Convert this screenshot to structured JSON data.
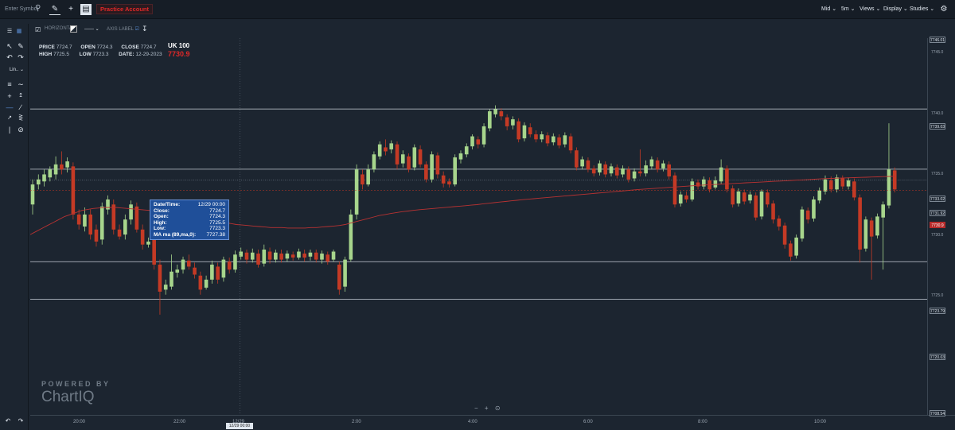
{
  "topbar": {
    "symbol_placeholder": "Enter Symbol",
    "account": "Practice Account",
    "menus": [
      "Mid",
      "5m",
      "Views",
      "Display",
      "Studies"
    ]
  },
  "drawing_toolbar": {
    "horizontal": "HORIZONTAL",
    "axis_label": "AXIS LABEL"
  },
  "hud": {
    "price_label": "PRICE",
    "price": "7724.7",
    "open_label": "OPEN",
    "open": "7724.3",
    "close_label": "CLOSE",
    "close": "7724.7",
    "high_label": "HIGH",
    "high": "7725.5",
    "low_label": "LOW",
    "low": "7723.3",
    "date_label": "DATE:",
    "date": "12-29-2023",
    "symbol": "UK 100",
    "last": "7730.9"
  },
  "tooltip": {
    "rows": [
      {
        "k": "Date/Time:",
        "v": "12/29 00:00"
      },
      {
        "k": "Close:",
        "v": "7724.7"
      },
      {
        "k": "Open:",
        "v": "7724.3"
      },
      {
        "k": "High:",
        "v": "7725.5"
      },
      {
        "k": "Low:",
        "v": "7723.3"
      },
      {
        "k": "MA ma (89,ma,0):",
        "v": "7727.38"
      }
    ]
  },
  "branding": {
    "powered": "POWERED BY",
    "logo": "ChartIQ"
  },
  "zoom": {
    "minus": "−",
    "plus": "+",
    "reset": "⊙"
  },
  "colors": {
    "up": "#a7d58c",
    "down": "#c43a25",
    "ma": "#b83232",
    "bg": "#1c2530",
    "level": "#c9d1d9"
  },
  "chart_data": {
    "type": "candlestick",
    "y_axis_ticks": [
      "7745.0",
      "7740.0",
      "7735.0",
      "7730.0",
      "7725.0"
    ],
    "x_axis_ticks": [
      "20:00",
      "22:00",
      "12/29",
      "2:00",
      "4:00",
      "6:00",
      "8:00",
      "10:00"
    ],
    "crosshair_x": "12/29 00:00",
    "levels": [
      "7746.01",
      "7739.03",
      "7733.02",
      "7731.92",
      "7723.79",
      "7720.03",
      "7708.54"
    ],
    "current_price": "7730.9",
    "ylim": [
      7708.5,
      7746.1
    ],
    "moving_average": "MA ma (89,ma,0)",
    "candles": [
      [
        7729.5,
        7731.5,
        7728.5,
        7732.0
      ],
      [
        7731.5,
        7732.0,
        7731.0,
        7732.5
      ],
      [
        7731.8,
        7732.5,
        7731.3,
        7733.0
      ],
      [
        7732.2,
        7733.0,
        7731.8,
        7733.3
      ],
      [
        7732.5,
        7733.5,
        7732.0,
        7734.3
      ],
      [
        7733.5,
        7733.0,
        7732.5,
        7734.8
      ],
      [
        7733.2,
        7733.8,
        7732.7,
        7734.2
      ],
      [
        7733.3,
        7728.5,
        7728.0,
        7733.7
      ],
      [
        7728.5,
        7727.5,
        7727.0,
        7729.0
      ],
      [
        7727.3,
        7728.5,
        7726.8,
        7729.2
      ],
      [
        7728.5,
        7726.5,
        7726.0,
        7729.0
      ],
      [
        7727.0,
        7725.8,
        7725.3,
        7727.5
      ],
      [
        7726.0,
        7729.3,
        7725.5,
        7729.7
      ],
      [
        7729.0,
        7730.0,
        7728.5,
        7730.4
      ],
      [
        7729.5,
        7727.0,
        7726.5,
        7730.0
      ],
      [
        7727.0,
        7726.3,
        7726.0,
        7727.5
      ],
      [
        7726.5,
        7728.0,
        7726.0,
        7728.5
      ],
      [
        7728.0,
        7729.5,
        7727.5,
        7729.9
      ],
      [
        7729.3,
        7727.0,
        7726.7,
        7729.7
      ],
      [
        7727.0,
        7725.5,
        7725.0,
        7727.5
      ],
      [
        7725.5,
        7725.8,
        7725.2,
        7726.2
      ],
      [
        7726.0,
        7723.5,
        7723.0,
        7726.4
      ],
      [
        7723.5,
        7720.8,
        7718.5,
        7724.0
      ],
      [
        7721.0,
        7721.5,
        7720.5,
        7722.0
      ],
      [
        7721.3,
        7722.8,
        7721.0,
        7724.5
      ],
      [
        7722.7,
        7723.0,
        7722.2,
        7723.5
      ],
      [
        7723.0,
        7724.0,
        7722.6,
        7724.3
      ],
      [
        7723.9,
        7723.3,
        7723.0,
        7724.5
      ],
      [
        7723.2,
        7722.5,
        7722.1,
        7723.7
      ],
      [
        7722.4,
        7721.0,
        7720.5,
        7722.8
      ],
      [
        7721.2,
        7722.0,
        7721.0,
        7722.4
      ],
      [
        7722.0,
        7723.5,
        7721.6,
        7723.9
      ],
      [
        7723.3,
        7722.0,
        7721.6,
        7723.7
      ],
      [
        7722.2,
        7724.0,
        7721.8,
        7724.3
      ],
      [
        7723.8,
        7723.0,
        7722.6,
        7724.2
      ],
      [
        7723.0,
        7724.5,
        7722.7,
        7724.9
      ],
      [
        7724.3,
        7724.8,
        7724.0,
        7725.2
      ],
      [
        7724.7,
        7724.0,
        7723.6,
        7725.0
      ],
      [
        7724.0,
        7724.7,
        7723.7,
        7725.1
      ],
      [
        7724.6,
        7723.5,
        7723.2,
        7725.0
      ],
      [
        7723.6,
        7725.0,
        7723.3,
        7725.5
      ],
      [
        7724.8,
        7724.0,
        7723.6,
        7725.2
      ],
      [
        7724.0,
        7724.7,
        7723.7,
        7725.0
      ],
      [
        7724.6,
        7724.0,
        7723.7,
        7725.0
      ],
      [
        7724.1,
        7724.6,
        7723.8,
        7724.9
      ],
      [
        7724.5,
        7724.2,
        7723.9,
        7724.8
      ],
      [
        7724.2,
        7724.8,
        7724.0,
        7725.1
      ],
      [
        7724.6,
        7724.2,
        7723.8,
        7725.0
      ],
      [
        7724.3,
        7724.7,
        7723.9,
        7725.0
      ],
      [
        7724.7,
        7724.0,
        7723.7,
        7725.0
      ],
      [
        7724.0,
        7724.6,
        7723.6,
        7724.9
      ],
      [
        7724.5,
        7723.8,
        7723.5,
        7724.8
      ],
      [
        7724.0,
        7724.8,
        7723.8,
        7725.0
      ],
      [
        7723.5,
        7721.0,
        7720.5,
        7723.8
      ],
      [
        7721.3,
        7724.0,
        7720.8,
        7724.3
      ],
      [
        7724.0,
        7728.5,
        7723.8,
        7729.0
      ],
      [
        7728.5,
        7733.0,
        7728.0,
        7733.5
      ],
      [
        7732.5,
        7731.5,
        7731.0,
        7733.0
      ],
      [
        7731.5,
        7733.0,
        7731.3,
        7733.5
      ],
      [
        7733.0,
        7734.5,
        7732.7,
        7734.8
      ],
      [
        7734.3,
        7735.5,
        7734.0,
        7735.8
      ],
      [
        7735.2,
        7734.8,
        7734.4,
        7736.0
      ],
      [
        7735.0,
        7735.6,
        7734.6,
        7735.9
      ],
      [
        7735.5,
        7733.5,
        7733.0,
        7735.8
      ],
      [
        7733.6,
        7734.5,
        7733.2,
        7734.9
      ],
      [
        7734.3,
        7733.0,
        7732.7,
        7734.6
      ],
      [
        7733.2,
        7735.2,
        7732.9,
        7735.5
      ],
      [
        7735.0,
        7733.5,
        7733.2,
        7735.4
      ],
      [
        7733.5,
        7732.0,
        7731.7,
        7733.8
      ],
      [
        7732.0,
        7734.5,
        7731.7,
        7734.8
      ],
      [
        7734.4,
        7732.5,
        7732.1,
        7734.7
      ],
      [
        7732.4,
        7731.6,
        7731.2,
        7732.8
      ],
      [
        7731.8,
        7731.5,
        7731.2,
        7732.1
      ],
      [
        7731.5,
        7734.2,
        7731.3,
        7734.5
      ],
      [
        7734.0,
        7734.6,
        7733.6,
        7734.9
      ],
      [
        7734.5,
        7735.3,
        7734.2,
        7735.6
      ],
      [
        7735.3,
        7736.3,
        7735.0,
        7736.5
      ],
      [
        7736.0,
        7735.5,
        7735.1,
        7736.3
      ],
      [
        7735.5,
        7737.3,
        7735.2,
        7737.6
      ],
      [
        7737.1,
        7738.8,
        7736.8,
        7739.0
      ],
      [
        7738.5,
        7739.0,
        7738.2,
        7739.4
      ],
      [
        7738.8,
        7738.3,
        7737.9,
        7739.1
      ],
      [
        7738.2,
        7737.3,
        7736.9,
        7738.5
      ],
      [
        7737.4,
        7738.0,
        7737.0,
        7738.3
      ],
      [
        7737.8,
        7736.0,
        7735.7,
        7738.1
      ],
      [
        7736.1,
        7737.4,
        7735.8,
        7737.7
      ],
      [
        7737.2,
        7736.5,
        7736.2,
        7737.6
      ],
      [
        7736.5,
        7736.0,
        7735.7,
        7736.9
      ],
      [
        7736.0,
        7736.5,
        7735.7,
        7736.8
      ],
      [
        7736.4,
        7735.6,
        7735.3,
        7736.7
      ],
      [
        7735.7,
        7736.3,
        7735.4,
        7736.6
      ],
      [
        7736.2,
        7735.4,
        7735.1,
        7736.5
      ],
      [
        7735.5,
        7736.4,
        7735.2,
        7736.7
      ],
      [
        7736.3,
        7734.9,
        7734.6,
        7736.6
      ],
      [
        7734.9,
        7733.2,
        7732.9,
        7735.2
      ],
      [
        7733.3,
        7734.0,
        7733.0,
        7734.3
      ],
      [
        7733.9,
        7733.0,
        7732.7,
        7734.2
      ],
      [
        7733.1,
        7732.6,
        7732.3,
        7733.4
      ],
      [
        7732.7,
        7733.6,
        7732.4,
        7733.9
      ],
      [
        7733.5,
        7732.5,
        7732.2,
        7733.8
      ],
      [
        7732.6,
        7733.3,
        7732.3,
        7733.6
      ],
      [
        7733.2,
        7732.4,
        7732.1,
        7733.5
      ],
      [
        7732.5,
        7733.1,
        7732.2,
        7733.4
      ],
      [
        7733.0,
        7732.0,
        7731.7,
        7733.3
      ],
      [
        7732.1,
        7732.8,
        7731.8,
        7733.1
      ],
      [
        7732.8,
        7732.6,
        7732.3,
        7735.0
      ],
      [
        7732.6,
        7733.4,
        7732.3,
        7733.9
      ],
      [
        7733.3,
        7734.0,
        7733.0,
        7734.3
      ],
      [
        7733.9,
        7733.0,
        7732.7,
        7734.2
      ],
      [
        7733.1,
        7733.6,
        7732.8,
        7733.9
      ],
      [
        7733.5,
        7732.3,
        7732.0,
        7733.8
      ],
      [
        7732.4,
        7729.5,
        7729.2,
        7732.7
      ],
      [
        7729.6,
        7730.5,
        7729.3,
        7730.8
      ],
      [
        7730.4,
        7730.0,
        7729.7,
        7730.8
      ],
      [
        7730.0,
        7731.8,
        7729.8,
        7732.1
      ],
      [
        7731.7,
        7731.3,
        7731.0,
        7732.0
      ],
      [
        7731.3,
        7732.0,
        7731.0,
        7732.3
      ],
      [
        7731.9,
        7731.0,
        7730.7,
        7732.2
      ],
      [
        7731.2,
        7731.9,
        7731.0,
        7732.3
      ],
      [
        7731.8,
        7733.2,
        7731.5,
        7734.0
      ],
      [
        7733.1,
        7731.0,
        7730.7,
        7733.4
      ],
      [
        7731.1,
        7729.5,
        7729.2,
        7731.4
      ],
      [
        7729.6,
        7730.8,
        7729.3,
        7731.1
      ],
      [
        7730.7,
        7729.8,
        7729.5,
        7731.0
      ],
      [
        7729.9,
        7730.5,
        7729.6,
        7730.8
      ],
      [
        7730.4,
        7728.2,
        7727.9,
        7730.7
      ],
      [
        7728.3,
        7730.8,
        7728.0,
        7731.0
      ],
      [
        7730.7,
        7729.5,
        7729.2,
        7731.0
      ],
      [
        7729.6,
        7728.0,
        7727.6,
        7729.9
      ],
      [
        7728.1,
        7727.3,
        7726.9,
        7728.4
      ],
      [
        7727.4,
        7725.5,
        7725.1,
        7727.7
      ],
      [
        7725.6,
        7724.3,
        7723.9,
        7725.9
      ],
      [
        7724.4,
        7726.2,
        7724.1,
        7726.5
      ],
      [
        7726.1,
        7729.0,
        7725.8,
        7729.3
      ],
      [
        7728.9,
        7728.0,
        7727.6,
        7729.2
      ],
      [
        7728.1,
        7730.0,
        7727.8,
        7730.3
      ],
      [
        7729.9,
        7730.9,
        7729.6,
        7731.2
      ],
      [
        7730.8,
        7732.0,
        7730.5,
        7732.4
      ],
      [
        7731.9,
        7731.0,
        7730.7,
        7732.3
      ],
      [
        7731.0,
        7732.2,
        7730.7,
        7732.5
      ],
      [
        7732.1,
        7731.3,
        7731.0,
        7732.4
      ],
      [
        7731.3,
        7731.9,
        7731.0,
        7732.2
      ],
      [
        7731.8,
        7730.2,
        7729.9,
        7732.1
      ],
      [
        7730.2,
        7725.0,
        7723.7,
        7730.5
      ],
      [
        7725.1,
        7728.0,
        7724.8,
        7728.3
      ],
      [
        7727.9,
        7726.3,
        7722.0,
        7728.2
      ],
      [
        7726.4,
        7728.3,
        7726.1,
        7728.6
      ],
      [
        7728.2,
        7729.5,
        7723.0,
        7729.8
      ],
      [
        7729.4,
        7733.0,
        7729.1,
        7737.6
      ],
      [
        7732.9,
        7731.0,
        7730.7,
        7733.2
      ]
    ],
    "ma_values": [
      7726.5,
      7726.8,
      7727.1,
      7727.4,
      7727.7,
      7728.0,
      7728.3,
      7728.5,
      7728.7,
      7728.9,
      7729.0,
      7729.1,
      7729.15,
      7729.2,
      7729.2,
      7729.2,
      7729.15,
      7729.1,
      7729.05,
      7729.0,
      7728.95,
      7728.9,
      7728.85,
      7728.8,
      7728.7,
      7728.6,
      7728.5,
      7728.4,
      7728.3,
      7728.2,
      7728.1,
      7728.0,
      7727.9,
      7727.8,
      7727.7,
      7727.6,
      7727.5,
      7727.45,
      7727.4,
      7727.35,
      7727.3,
      7727.25,
      7727.2,
      7727.2,
      7727.2,
      7727.15,
      7727.15,
      7727.15,
      7727.15,
      7727.2,
      7727.2,
      7727.25,
      7727.3,
      7727.35,
      7727.4,
      7727.5,
      7727.65,
      7727.8,
      7727.95,
      7728.1,
      7728.25,
      7728.4,
      7728.5,
      7728.6,
      7728.7,
      7728.78,
      7728.85,
      7728.92,
      7728.98,
      7729.03,
      7729.08,
      7729.13,
      7729.18,
      7729.23,
      7729.28,
      7729.33,
      7729.38,
      7729.43,
      7729.48,
      7729.55,
      7729.62,
      7729.68,
      7729.74,
      7729.8,
      7729.86,
      7729.92,
      7729.98,
      7730.03,
      7730.08,
      7730.13,
      7730.18,
      7730.23,
      7730.28,
      7730.33,
      7730.38,
      7730.43,
      7730.48,
      7730.53,
      7730.58,
      7730.63,
      7730.68,
      7730.73,
      7730.78,
      7730.83,
      7730.88,
      7730.93,
      7730.98,
      7731.02,
      7731.06,
      7731.1,
      7731.14,
      7731.18,
      7731.22,
      7731.26,
      7731.3,
      7731.34,
      7731.38,
      7731.42,
      7731.45,
      7731.48,
      7731.51,
      7731.54,
      7731.57,
      7731.6,
      7731.63,
      7731.66,
      7731.69,
      7731.72,
      7731.75,
      7731.78,
      7731.81,
      7731.84,
      7731.87,
      7731.9,
      7731.93,
      7731.96,
      7731.99,
      7732.02,
      7732.05,
      7732.08,
      7732.1,
      7732.12,
      7732.14,
      7732.16,
      7732.18,
      7732.2,
      7732.22,
      7732.24,
      7732.26,
      7732.28,
      7732.3,
      7732.32
    ]
  }
}
